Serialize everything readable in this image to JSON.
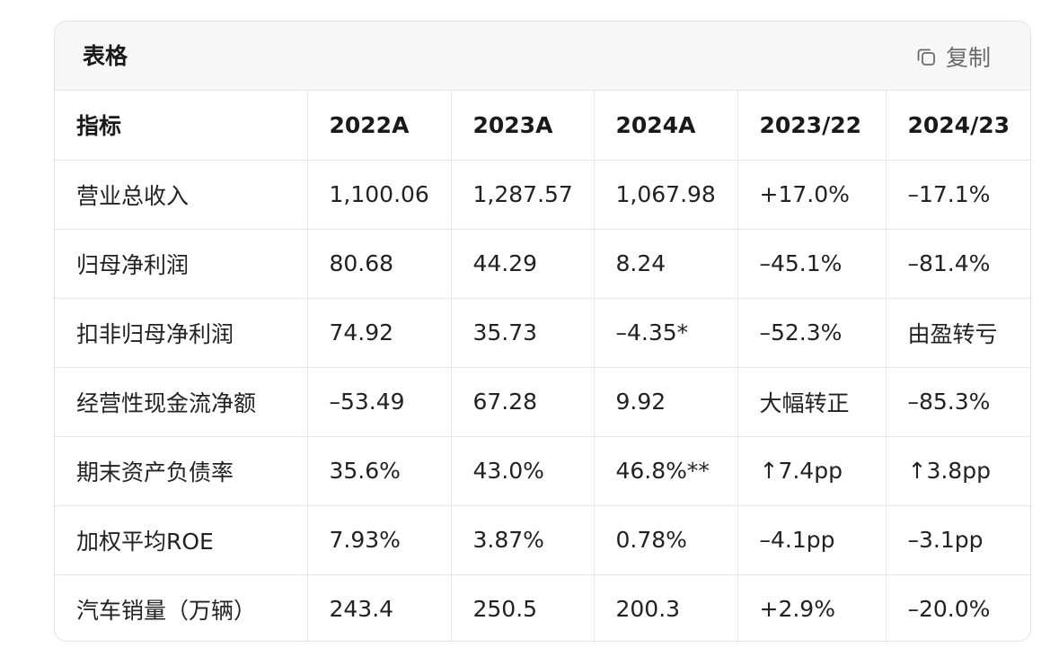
{
  "header": {
    "title": "表格",
    "copy_label": "复制",
    "copy_icon": "copy-icon"
  },
  "table": {
    "columns": [
      "指标",
      "2022A",
      "2023A",
      "2024A",
      "2023/22",
      "2024/23"
    ],
    "rows": [
      [
        "营业总收入",
        "1,100.06",
        "1,287.57",
        "1,067.98",
        "+17.0%",
        "–17.1%"
      ],
      [
        "归母净利润",
        "80.68",
        "44.29",
        "8.24",
        "–45.1%",
        "–81.4%"
      ],
      [
        "扣非归母净利润",
        "74.92",
        "35.73",
        "–4.35*",
        "–52.3%",
        "由盈转亏"
      ],
      [
        "经营性现金流净额",
        "–53.49",
        "67.28",
        "9.92",
        "大幅转正",
        "–85.3%"
      ],
      [
        "期末资产负债率",
        "35.6%",
        "43.0%",
        "46.8%**",
        "↑7.4pp",
        "↑3.8pp"
      ],
      [
        "加权平均ROE",
        "7.93%",
        "3.87%",
        "0.78%",
        "–4.1pp",
        "–3.1pp"
      ],
      [
        "汽车销量（万辆）",
        "243.4",
        "250.5",
        "200.3",
        "+2.9%",
        "–20.0%"
      ]
    ]
  }
}
